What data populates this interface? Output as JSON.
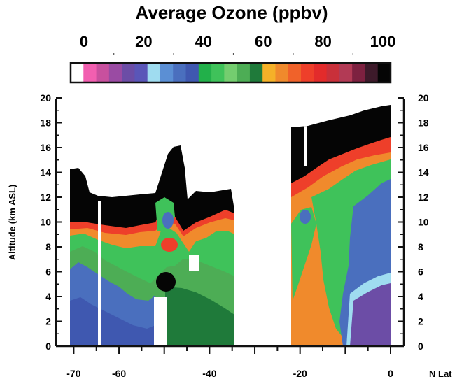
{
  "chart_data": {
    "type": "heatmap",
    "title": "Average Ozone (ppbv)",
    "ylabel": "Altitude (km ASL)",
    "xlabel": "N Lat",
    "xlim": [
      -73,
      0
    ],
    "ylim": [
      0,
      20
    ],
    "x_ticks": [
      -70,
      -60,
      -40,
      -20,
      0
    ],
    "y_ticks": [
      0,
      2,
      4,
      6,
      8,
      10,
      12,
      14,
      16,
      18,
      20
    ],
    "colorbar": {
      "ticks": [
        0,
        20,
        40,
        60,
        80,
        100
      ],
      "range": [
        0,
        100
      ],
      "colors": [
        "#ffffff",
        "#f25fb0",
        "#c8509e",
        "#9a4ba3",
        "#6c4da6",
        "#5a56b8",
        "#9fdcf0",
        "#5b8fd4",
        "#4a6fbe",
        "#3f58b0",
        "#22b04a",
        "#3fc25a",
        "#74cd6f",
        "#4dad55",
        "#1f7a3a",
        "#f5b128",
        "#f08a2c",
        "#f0622a",
        "#ee3f2a",
        "#e32b2b",
        "#c9303a",
        "#b23a55",
        "#7d2140",
        "#3d1a2a",
        "#050505"
      ]
    },
    "data_coverage": [
      {
        "lat_range": [
          -72,
          -35
        ],
        "alt_range": [
          0,
          16
        ],
        "description": "southern flight segment"
      },
      {
        "lat_range": [
          -22,
          0
        ],
        "alt_range": [
          0,
          19.3
        ],
        "description": "northern flight segment"
      }
    ],
    "features": [
      {
        "region": "surface to ~7 km, -72 to -55",
        "ozone_ppbv": "30-45",
        "color": "blue"
      },
      {
        "region": "~7-10 km, -72 to -35",
        "ozone_ppbv": "50-75",
        "color": "green to red"
      },
      {
        "region": "above ~10-12 km, -72 to -35",
        "ozone_ppbv": "100",
        "color": "black"
      },
      {
        "region": "~5 km near -50",
        "ozone_ppbv": "100",
        "color": "black blob"
      },
      {
        "region": "surface to ~10 km, -22 to -12",
        "ozone_ppbv": "65-85",
        "color": "red/orange"
      },
      {
        "region": "surface to ~14 km, -12 to 0",
        "ozone_ppbv": "25-45",
        "color": "blue/purple"
      },
      {
        "region": "above ~16 km, -22 to 0",
        "ozone_ppbv": "100",
        "color": "black"
      }
    ]
  }
}
